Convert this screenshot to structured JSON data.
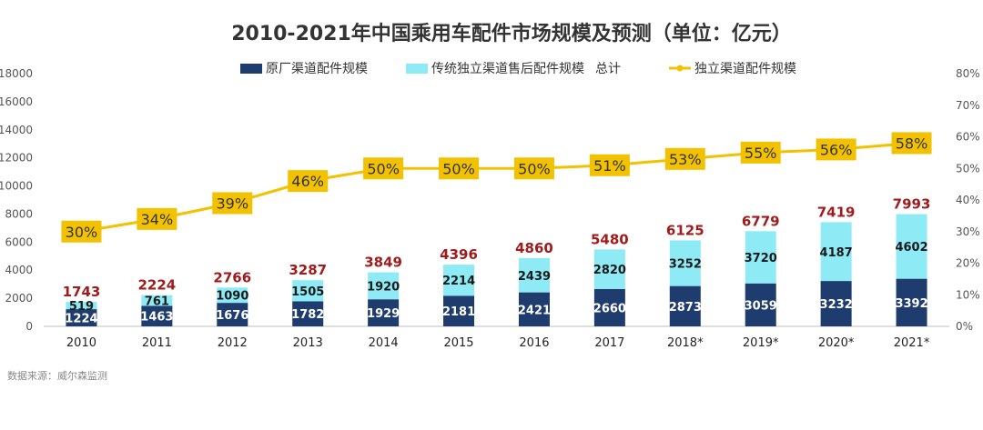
{
  "chart_data": {
    "type": "bar",
    "title": "2010-2021年中国乘用车配件市场规模及预测（单位：亿元）",
    "categories": [
      "2010",
      "2011",
      "2012",
      "2013",
      "2014",
      "2015",
      "2016",
      "2017",
      "2018*",
      "2019*",
      "2020*",
      "2021*"
    ],
    "series": [
      {
        "name": "原厂渠道配件规模",
        "type": "bar",
        "stack": "main",
        "color": "#1f3c6e",
        "values": [
          1224,
          1463,
          1676,
          1782,
          1929,
          2181,
          2421,
          2660,
          2873,
          3059,
          3232,
          3392
        ]
      },
      {
        "name": "传统独立渠道售后配件规模",
        "type": "bar",
        "stack": "main",
        "color": "#8eeaf5",
        "values": [
          519,
          761,
          1090,
          1505,
          1920,
          2214,
          2439,
          2820,
          3252,
          3720,
          4187,
          4602
        ]
      },
      {
        "name": "总计",
        "type": "label",
        "color": "#a01c1c",
        "values": [
          1743,
          2224,
          2766,
          3287,
          3849,
          4396,
          4860,
          5480,
          6125,
          6779,
          7419,
          7993
        ]
      },
      {
        "name": "独立渠道配件规模",
        "type": "line",
        "axis": "right",
        "color": "#f2c100",
        "values": [
          30,
          34,
          39,
          46,
          50,
          50,
          50,
          51,
          53,
          55,
          56,
          58
        ]
      }
    ],
    "y_left": {
      "min": 0,
      "max": 18000,
      "ticks": [
        "0",
        "2000",
        "4000",
        "6000",
        "8000",
        "10000",
        "12000",
        "14000",
        "16000",
        "18000"
      ]
    },
    "y_right": {
      "min": 0,
      "max": 80,
      "ticks": [
        "0%",
        "10%",
        "20%",
        "30%",
        "40%",
        "50%",
        "60%",
        "70%",
        "80%"
      ]
    },
    "grid": false,
    "legend_position": "top"
  },
  "source": "数据来源：威尔森监测"
}
